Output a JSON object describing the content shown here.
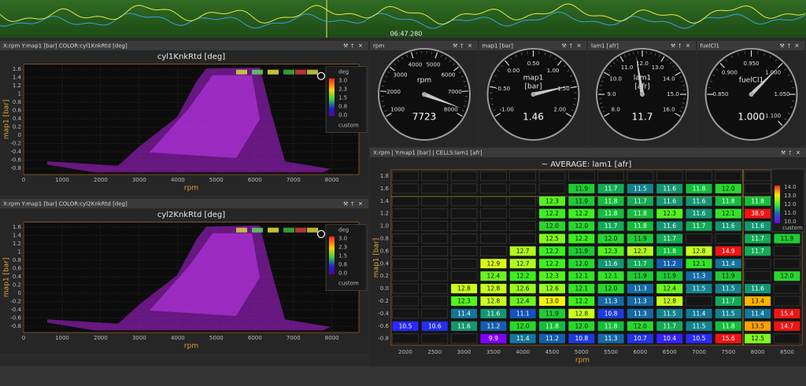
{
  "timeline": {
    "time": "06:47.280"
  },
  "scatter_panels": [
    {
      "header": "X:rpm   Y:map1 [bar]   COLOR:cyl1KnkRtd [deg]",
      "title": "cyl1KnkRtd [deg]",
      "x_label": "rpm",
      "y_label": "map1 [bar]",
      "xlim": [
        0,
        8700
      ],
      "xticks": [
        0,
        1000,
        2000,
        3000,
        4000,
        5000,
        6000,
        7000,
        8000
      ],
      "ylim": [
        -0.95,
        1.72
      ],
      "yticks": [
        1.6,
        1.4,
        1.2,
        1,
        0.8,
        0.6,
        0.4,
        0.2,
        0,
        -0.2,
        -0.4,
        -0.6,
        -0.8
      ],
      "legend": {
        "title": "deg",
        "ticks": [
          {
            "value": 3,
            "label": "3.0"
          },
          2.3,
          1.5,
          0.8,
          {
            "value": 0,
            "label": "0.0"
          }
        ],
        "scheme": "custom"
      }
    },
    {
      "header": "X:rpm   Y:map1 [bar]   COLOR:cyl2KnkRtd [deg]",
      "title": "cyl2KnkRtd [deg]",
      "x_label": "rpm",
      "y_label": "map1 [bar]",
      "xlim": [
        0,
        8700
      ],
      "xticks": [
        0,
        1000,
        2000,
        3000,
        4000,
        5000,
        6000,
        7000,
        8000
      ],
      "ylim": [
        -0.95,
        1.72
      ],
      "yticks": [
        1.6,
        1.4,
        1.2,
        1,
        0.8,
        0.6,
        0.4,
        0.2,
        0,
        -0.2,
        -0.4,
        -0.6,
        -0.8
      ],
      "legend": {
        "title": "deg",
        "ticks": [
          {
            "value": 3,
            "label": "3.0"
          },
          2.3,
          1.5,
          0.8,
          {
            "value": 0,
            "label": "0.0"
          }
        ],
        "scheme": "custom"
      }
    }
  ],
  "gauges": [
    {
      "header": "rpm",
      "label": [
        "rpm"
      ],
      "ticks": [
        1000,
        2000,
        3000,
        4000,
        5000,
        6000,
        7000,
        8000
      ],
      "value": 7723
    },
    {
      "header": "map1 [bar]",
      "label": [
        "map1",
        "[bar]"
      ],
      "ticks": [
        {
          "value": -1,
          "label": "-1.00"
        },
        {
          "value": -0.5,
          "label": "-0.50"
        },
        {
          "value": 0,
          "label": "0.00"
        },
        {
          "value": 0.5,
          "label": "0.50"
        },
        {
          "value": 1,
          "label": "1.00"
        },
        {
          "value": 1.5,
          "label": "1.50"
        },
        {
          "value": 2,
          "label": "2.00"
        }
      ],
      "value": 1.46
    },
    {
      "header": "lam1 [afr]",
      "label": [
        "lam1",
        "[afr]"
      ],
      "ticks": [
        {
          "value": 8,
          "label": "8.0"
        },
        {
          "value": 9,
          "label": "9.0"
        },
        {
          "value": 10,
          "label": "10.0"
        },
        {
          "value": 11,
          "label": "11.0"
        },
        {
          "value": 12,
          "label": "12.0"
        },
        {
          "value": 13,
          "label": "13.0"
        },
        {
          "value": 14,
          "label": "14.0"
        },
        {
          "value": 15,
          "label": "15.0"
        },
        {
          "value": 16,
          "label": "16.0"
        }
      ],
      "value": 11.7
    },
    {
      "header": "fuelCl1",
      "label": [
        "fuelCl1"
      ],
      "ticks": [
        {
          "value": 0.85,
          "label": "0.850"
        },
        {
          "value": 0.9,
          "label": "0.900"
        },
        {
          "value": 0.95,
          "label": "0.950"
        },
        {
          "value": 1,
          "label": "1.000"
        },
        {
          "value": 1.05,
          "label": "1.050"
        },
        {
          "value": 1.1,
          "label": "1.100"
        }
      ],
      "value": {
        "value": 1,
        "label": "1.000"
      }
    }
  ],
  "heatmap": {
    "header": "X:rpm | Y:map1 [bar] | CELLS:lam1 [afr]",
    "title": "~ AVERAGE: lam1 [afr]",
    "x_label": "rpm",
    "y_label": "map1 [bar]",
    "columns": [
      "2000",
      "2500",
      "3000",
      "3500",
      "4000",
      "4500",
      "5000",
      "5500",
      "6000",
      "6500",
      "7000",
      "7500",
      "8000",
      "8500"
    ],
    "rows": [
      "1.8",
      "1.6",
      "1.4",
      "1.2",
      "1.0",
      "0.8",
      "0.6",
      "0.4",
      "0.2",
      "0.0",
      "-0.2",
      "-0.4",
      "-0.6",
      "-0.8"
    ],
    "cells": [
      [
        null,
        null,
        null,
        null,
        null,
        null,
        null,
        null,
        null,
        null,
        null,
        null,
        null,
        null
      ],
      [
        null,
        null,
        null,
        null,
        null,
        null,
        "11.9",
        "11.7",
        "11.5",
        "11.6",
        "11.8",
        "12.0",
        null,
        null
      ],
      [
        null,
        null,
        null,
        null,
        null,
        "12.3",
        "11.9",
        "11.8",
        "11.7",
        "11.6",
        "11.6",
        "11.8",
        "11.8",
        null
      ],
      [
        null,
        null,
        null,
        null,
        null,
        "12.2",
        "12.2",
        "11.8",
        "11.8",
        "12.3",
        "11.6",
        "12.1",
        "38.9",
        null
      ],
      [
        null,
        null,
        null,
        null,
        null,
        "12.0",
        "12.0",
        "11.7",
        "11.8",
        "11.6",
        "11.7",
        "11.6",
        "11.6",
        null
      ],
      [
        null,
        null,
        null,
        null,
        null,
        "12.5",
        "12.2",
        "12.0",
        "11.9",
        "11.7",
        null,
        null,
        "11.7",
        "11.9"
      ],
      [
        null,
        null,
        null,
        null,
        "12.7",
        "12.2",
        "11.9",
        "12.3",
        "12.7",
        "11.8",
        "12.8",
        "14.9",
        "11.7",
        null
      ],
      [
        null,
        null,
        null,
        "12.9",
        "12.7",
        "12.2",
        "12.0",
        "11.6",
        "11.7",
        "11.2",
        "12.1",
        "11.4",
        null,
        null
      ],
      [
        null,
        null,
        null,
        "12.4",
        "12.2",
        "12.3",
        "12.1",
        "12.1",
        "11.9",
        "11.9",
        "11.3",
        "11.9",
        null,
        "12.0"
      ],
      [
        null,
        null,
        "12.8",
        "12.8",
        "12.6",
        "12.6",
        "12.1",
        "12.0",
        "11.3",
        "12.4",
        "11.5",
        "11.5",
        "11.6",
        null
      ],
      [
        null,
        null,
        "12.3",
        "12.8",
        "12.4",
        "13.0",
        "12.2",
        "11.3",
        "11.3",
        "12.8",
        null,
        "11.7",
        "13.4",
        null
      ],
      [
        null,
        null,
        "11.4",
        "11.6",
        "11.1",
        "11.9",
        "12.8",
        "10.8",
        "11.3",
        "11.5",
        "11.4",
        "11.5",
        "11.4",
        "15.4"
      ],
      [
        "10.5",
        "10.6",
        "11.6",
        "11.2",
        "12.0",
        "11.8",
        "12.0",
        "11.8",
        "12.0",
        "11.7",
        "11.5",
        "11.8",
        "13.5",
        "14.7"
      ],
      [
        null,
        null,
        null,
        "9.9",
        "11.4",
        "11.2",
        "10.8",
        "11.3",
        "10.7",
        "10.4",
        "10.5",
        "15.6",
        "12.5",
        null
      ]
    ],
    "legend": {
      "ticks": [
        "14.0",
        "13.0",
        "12.0",
        "11.0",
        "10.0"
      ],
      "scheme": "custom"
    }
  }
}
